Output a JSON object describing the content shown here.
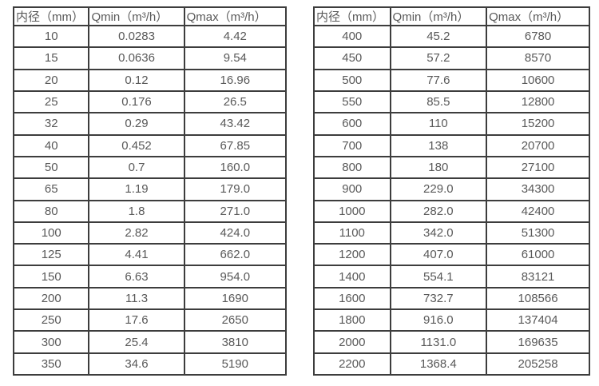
{
  "colors": {
    "background": "#ffffff",
    "table_border": "#3d3d3d",
    "text": "#595959"
  },
  "chart_data": [
    {
      "type": "table",
      "headers": [
        "内径（mm）",
        "Qmin（m³/h）",
        "Qmax（m³/h）"
      ],
      "rows": [
        [
          "10",
          "0.0283",
          "4.42"
        ],
        [
          "15",
          "0.0636",
          "9.54"
        ],
        [
          "20",
          "0.12",
          "16.96"
        ],
        [
          "25",
          "0.176",
          "26.5"
        ],
        [
          "32",
          "0.29",
          "43.42"
        ],
        [
          "40",
          "0.452",
          "67.85"
        ],
        [
          "50",
          "0.7",
          "160.0"
        ],
        [
          "65",
          "1.19",
          "179.0"
        ],
        [
          "80",
          "1.8",
          "271.0"
        ],
        [
          "100",
          "2.82",
          "424.0"
        ],
        [
          "125",
          "4.41",
          "662.0"
        ],
        [
          "150",
          "6.63",
          "954.0"
        ],
        [
          "200",
          "11.3",
          "1690"
        ],
        [
          "250",
          "17.6",
          "2650"
        ],
        [
          "300",
          "25.4",
          "3810"
        ],
        [
          "350",
          "34.6",
          "5190"
        ]
      ]
    },
    {
      "type": "table",
      "headers": [
        "内径（mm）",
        "Qmin（m³/h）",
        "Qmax（m³/h）"
      ],
      "rows": [
        [
          "400",
          "45.2",
          "6780"
        ],
        [
          "450",
          "57.2",
          "8570"
        ],
        [
          "500",
          "77.6",
          "10600"
        ],
        [
          "550",
          "85.5",
          "12800"
        ],
        [
          "600",
          "110",
          "15200"
        ],
        [
          "700",
          "138",
          "20700"
        ],
        [
          "800",
          "180",
          "27100"
        ],
        [
          "900",
          "229.0",
          "34300"
        ],
        [
          "1000",
          "282.0",
          "42400"
        ],
        [
          "1100",
          "342.0",
          "51300"
        ],
        [
          "1200",
          "407.0",
          "61000"
        ],
        [
          "1400",
          "554.1",
          "83121"
        ],
        [
          "1600",
          "732.7",
          "108566"
        ],
        [
          "1800",
          "916.0",
          "137404"
        ],
        [
          "2000",
          "1131.0",
          "169635"
        ],
        [
          "2200",
          "1368.4",
          "205258"
        ]
      ]
    }
  ]
}
